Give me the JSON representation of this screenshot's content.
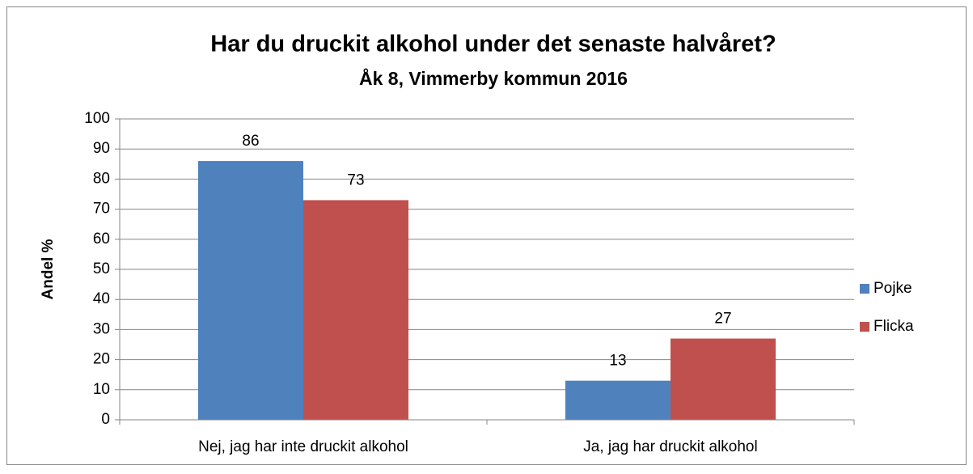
{
  "chart_data": {
    "type": "bar",
    "title": "Har du druckit alkohol under det senaste halvåret?",
    "subtitle": "Åk 8, Vimmerby kommun 2016",
    "y_label": "Andel %",
    "categories": [
      "Nej, jag har inte druckit alkohol",
      "Ja, jag har druckit alkohol"
    ],
    "series": [
      {
        "name": "Pojke",
        "color": "#4f81bd",
        "values": [
          86,
          13
        ]
      },
      {
        "name": "Flicka",
        "color": "#c0504d",
        "values": [
          73,
          27
        ]
      }
    ],
    "ylim": [
      0,
      100
    ],
    "yticks": [
      0,
      10,
      20,
      30,
      40,
      50,
      60,
      70,
      80,
      90,
      100
    ],
    "grid": true,
    "legend": "right"
  }
}
